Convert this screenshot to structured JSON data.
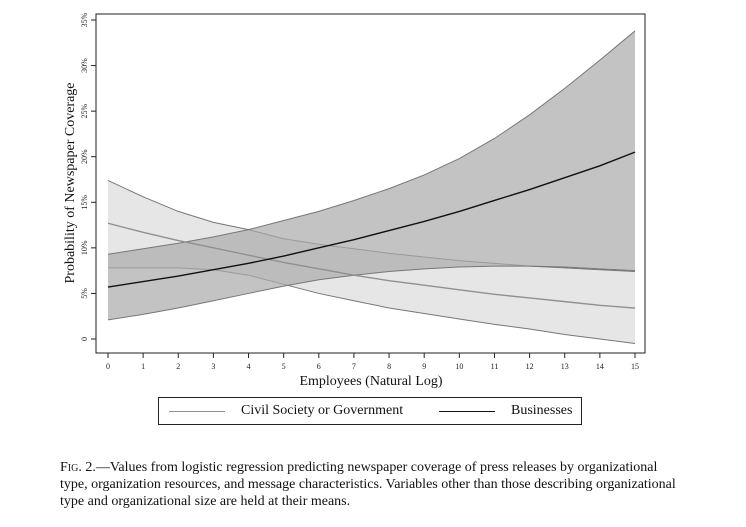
{
  "chart_data": {
    "type": "line",
    "ylabel": "Probability of Newspaper Coverage",
    "xlabel": "Employees (Natural Log)",
    "xlim": [
      0,
      15
    ],
    "ylim": [
      0,
      35
    ],
    "x_ticks": [
      "0",
      "1",
      "2",
      "3",
      "4",
      "5",
      "6",
      "7",
      "8",
      "9",
      "10",
      "11",
      "12",
      "13",
      "14",
      "15"
    ],
    "y_ticks": [
      {
        "value": 0,
        "label": "0"
      },
      {
        "value": 5,
        "label": "5%"
      },
      {
        "value": 10,
        "label": "10%"
      },
      {
        "value": 15,
        "label": "15%"
      },
      {
        "value": 20,
        "label": "20%"
      },
      {
        "value": 25,
        "label": "25%"
      },
      {
        "value": 30,
        "label": "30%"
      },
      {
        "value": 35,
        "label": "35%"
      }
    ],
    "grid": false,
    "legend_position": "bottom",
    "series": [
      {
        "name": "Civil Society or Government",
        "line_color": "#909090",
        "band_color": "#dcdcdc",
        "x": [
          0,
          1,
          2,
          3,
          4,
          5,
          6,
          7,
          8,
          9,
          10,
          11,
          12,
          13,
          14,
          15
        ],
        "y": [
          12.7,
          11.7,
          10.8,
          10.0,
          9.2,
          8.4,
          7.7,
          7.0,
          6.4,
          5.9,
          5.4,
          4.9,
          4.5,
          4.1,
          3.7,
          3.4
        ],
        "lower": [
          7.8,
          7.8,
          7.8,
          7.6,
          7.0,
          6.0,
          5.0,
          4.2,
          3.4,
          2.8,
          2.2,
          1.6,
          1.1,
          0.5,
          0.0,
          -0.5
        ],
        "upper": [
          17.4,
          15.6,
          14.0,
          12.8,
          12.0,
          11.0,
          10.4,
          9.9,
          9.4,
          9.0,
          8.6,
          8.3,
          8.0,
          7.8,
          7.6,
          7.4
        ]
      },
      {
        "name": "Businesses",
        "line_color": "#111111",
        "band_color": "#a9a9a9",
        "x": [
          0,
          1,
          2,
          3,
          4,
          5,
          6,
          7,
          8,
          9,
          10,
          11,
          12,
          13,
          14,
          15
        ],
        "y": [
          5.7,
          6.3,
          6.9,
          7.6,
          8.3,
          9.1,
          10.0,
          10.9,
          11.9,
          12.9,
          14.0,
          15.2,
          16.4,
          17.7,
          19.0,
          20.5
        ],
        "lower": [
          2.1,
          2.7,
          3.4,
          4.2,
          5.0,
          5.8,
          6.5,
          7.0,
          7.4,
          7.7,
          7.9,
          8.0,
          8.0,
          7.9,
          7.7,
          7.5
        ],
        "upper": [
          9.3,
          9.9,
          10.5,
          11.2,
          12.0,
          13.0,
          14.0,
          15.2,
          16.5,
          18.0,
          19.8,
          22.0,
          24.6,
          27.5,
          30.6,
          33.8
        ]
      }
    ]
  },
  "legend": {
    "items": [
      {
        "label": "Civil Society or Government"
      },
      {
        "label": "Businesses"
      }
    ]
  },
  "caption": {
    "fig_label": "Fig. 2.",
    "text": "—Values from logistic regression predicting newspaper coverage of press releases by organizational type, organization resources, and message characteristics. Variables other than those describing organizational type and organizational size are held at their means."
  }
}
